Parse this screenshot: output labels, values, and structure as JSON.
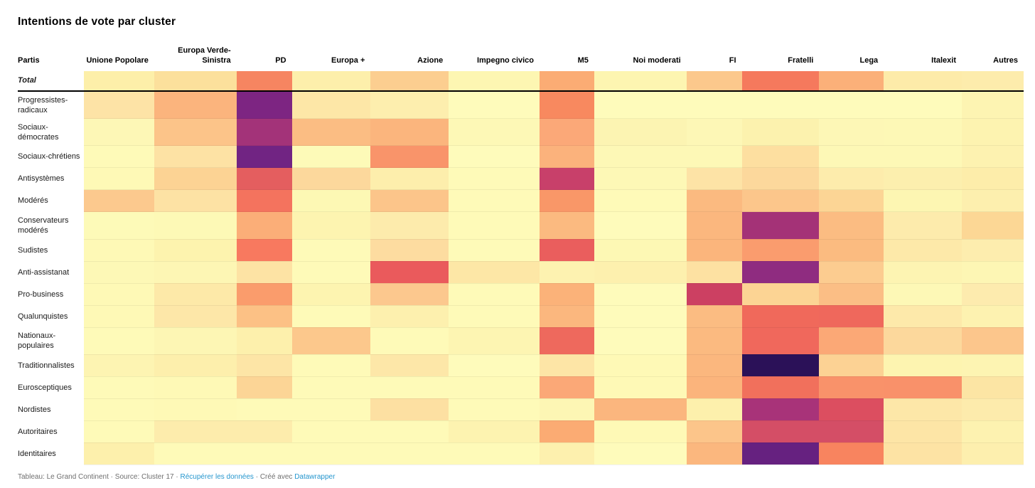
{
  "title": "Intentions de vote par cluster",
  "table": {
    "corner_header": "Partis"
  },
  "chart_data": {
    "type": "heatmap",
    "title": "Intentions de vote par cluster",
    "legend": "none (no numeric labels shown; values encoded as color from pale yellow = low to dark purple/navy = high)",
    "columns": [
      "Unione Popolare",
      "Europa Verde-Sinistra",
      "PD",
      "Europa +",
      "Azione",
      "Impegno civico",
      "M5",
      "Noi moderati",
      "FI",
      "Fratelli",
      "Lega",
      "Italexit",
      "Autres"
    ],
    "rows": [
      "Total",
      "Progressistes-radicaux",
      "Sociaux-démocrates",
      "Sociaux-chrétiens",
      "Antisystèmes",
      "Modérés",
      "Conservateurs modérés",
      "Sudistes",
      "Anti-assistanat",
      "Pro-business",
      "Qualunquistes",
      "Nationaux-populaires",
      "Traditionnalistes",
      "Eurosceptiques",
      "Nordistes",
      "Autoritaires",
      "Identitaires"
    ],
    "cell_colors": [
      [
        "#FDEFA9",
        "#FCE09C",
        "#F68561",
        "#FDEFAB",
        "#FCCE90",
        "#FDF6B2",
        "#FBAC74",
        "#FDF5B1",
        "#FCC88C",
        "#F5795D",
        "#FBB079",
        "#FDEBA9",
        "#FDECAC"
      ],
      [
        "#FDE3A6",
        "#FBB47D",
        "#7D2582",
        "#FDE7A7",
        "#FDEEAE",
        "#FEFBBB",
        "#F8895F",
        "#FEFBBB",
        "#FEFBBB",
        "#FEFBBB",
        "#FEFBBB",
        "#FEFBBB",
        "#FDF4B2"
      ],
      [
        "#FDF7B6",
        "#FCC489",
        "#A33379",
        "#FBBD83",
        "#FBB57D",
        "#FDF8B6",
        "#FBA878",
        "#FCF4B2",
        "#FDF7B6",
        "#FCF2AE",
        "#FDF7B6",
        "#FDF8B6",
        "#FDF3B0"
      ],
      [
        "#FEFAB8",
        "#FDE2A4",
        "#712483",
        "#FDFAB8",
        "#F9946A",
        "#FEFBBB",
        "#FBB27C",
        "#FDF8B6",
        "#FDF8B6",
        "#FDDFA0",
        "#FDF8B6",
        "#FDF8B6",
        "#FDF2B0"
      ],
      [
        "#FEF9B6",
        "#FCD394",
        "#E45E5F",
        "#FCD89C",
        "#FDEEAC",
        "#FEFAB8",
        "#C8406A",
        "#FDF8B6",
        "#FDE3A6",
        "#FCD89C",
        "#FDECAC",
        "#FCEFAE",
        "#FDEDAA"
      ],
      [
        "#FCC98E",
        "#FDE2A4",
        "#F4735E",
        "#FDF8B4",
        "#FCC58A",
        "#FEFAB8",
        "#F99768",
        "#FEFAB8",
        "#FBBA80",
        "#FCC68B",
        "#FCD595",
        "#FDF6B2",
        "#FDEFAE"
      ],
      [
        "#FDFAB8",
        "#FDF9B6",
        "#FBAE78",
        "#FDF4B0",
        "#FDEBAC",
        "#FEFAB8",
        "#FBBA80",
        "#FEFBBB",
        "#FBB77E",
        "#A43277",
        "#FBBC82",
        "#FDEBAC",
        "#FCD795"
      ],
      [
        "#FEF9B6",
        "#FDF3AE",
        "#F8795F",
        "#FEFAB8",
        "#FDDCA0",
        "#FEFAB8",
        "#EA5E5D",
        "#FDF8B4",
        "#FBB57C",
        "#FA9C6E",
        "#FBBB80",
        "#FDE9A9",
        "#FDEDAE"
      ],
      [
        "#FDF8B6",
        "#FDF6B4",
        "#FDE3A4",
        "#FEFAB8",
        "#EA5A5C",
        "#FDE7A6",
        "#FDF2B0",
        "#FDF0AE",
        "#FDE1A2",
        "#8F2C80",
        "#FCCC90",
        "#FDF4B2",
        "#FDF6B4"
      ],
      [
        "#FEF9B6",
        "#FDE9A8",
        "#FA9C6C",
        "#FDF4B0",
        "#FCC88E",
        "#FEFAB8",
        "#FBB279",
        "#FEFBBB",
        "#CC4062",
        "#FCD494",
        "#FBBE85",
        "#FDF8B6",
        "#FDEBAE"
      ],
      [
        "#FEF9B6",
        "#FDE7A8",
        "#FCC185",
        "#FEFAB8",
        "#FDF0AE",
        "#FEFAB8",
        "#FBB77E",
        "#FEFBBB",
        "#FBBC82",
        "#F0695B",
        "#EF685C",
        "#FDE9AA",
        "#FDF2B0"
      ],
      [
        "#FEFAB8",
        "#FDF6B4",
        "#FDF0AC",
        "#FCC88C",
        "#FEFAB8",
        "#FDF5B2",
        "#EE695D",
        "#FEFBBB",
        "#FBBA80",
        "#F0685C",
        "#FBA876",
        "#FCD89C",
        "#FCC68C"
      ],
      [
        "#FDF4B2",
        "#FDEFAC",
        "#FDE5A6",
        "#FEFAB8",
        "#FDE7A8",
        "#FEFBBB",
        "#FDE5A6",
        "#FEF9B6",
        "#FBB77E",
        "#2B1158",
        "#FCD294",
        "#FDF4B0",
        "#FDF4B2"
      ],
      [
        "#FEFAB8",
        "#FEF9B6",
        "#FCD596",
        "#FEFAB8",
        "#FEFAB8",
        "#FEFAB8",
        "#FBA877",
        "#FEF9B6",
        "#FBB47C",
        "#F1705C",
        "#F9926A",
        "#F9916A",
        "#FCE5A4"
      ],
      [
        "#FEFAB8",
        "#FEF9B6",
        "#FEFAB8",
        "#FEFAB8",
        "#FDE0A2",
        "#FEFAB8",
        "#FDF6B4",
        "#FBB67E",
        "#FDF0AC",
        "#A83379",
        "#DC4E60",
        "#FDE7A8",
        "#FDEBAC"
      ],
      [
        "#FEFAB8",
        "#FDECAC",
        "#FDECAC",
        "#FEFAB8",
        "#FEFAB8",
        "#FDF3B0",
        "#FBAB73",
        "#FEF9B6",
        "#FCC58A",
        "#D44E66",
        "#D44E66",
        "#FDE5A6",
        "#FDF2B0"
      ],
      [
        "#FDF0AC",
        "#FEFAB8",
        "#FEFAB8",
        "#FEFAB8",
        "#FEFAB8",
        "#FEFAB8",
        "#FDF0AE",
        "#FEFBBB",
        "#FBB77E",
        "#662180",
        "#F8845F",
        "#FDE3A4",
        "#FDEFAE"
      ]
    ]
  },
  "footer": {
    "attribution": "Tableau: Le Grand Continent",
    "source_label": "Source: Cluster 17",
    "separator": "·",
    "data_link": "Récupérer les données",
    "created_with": "Créé avec",
    "tool_link": "Datawrapper",
    "link_color": "#2596CE"
  }
}
